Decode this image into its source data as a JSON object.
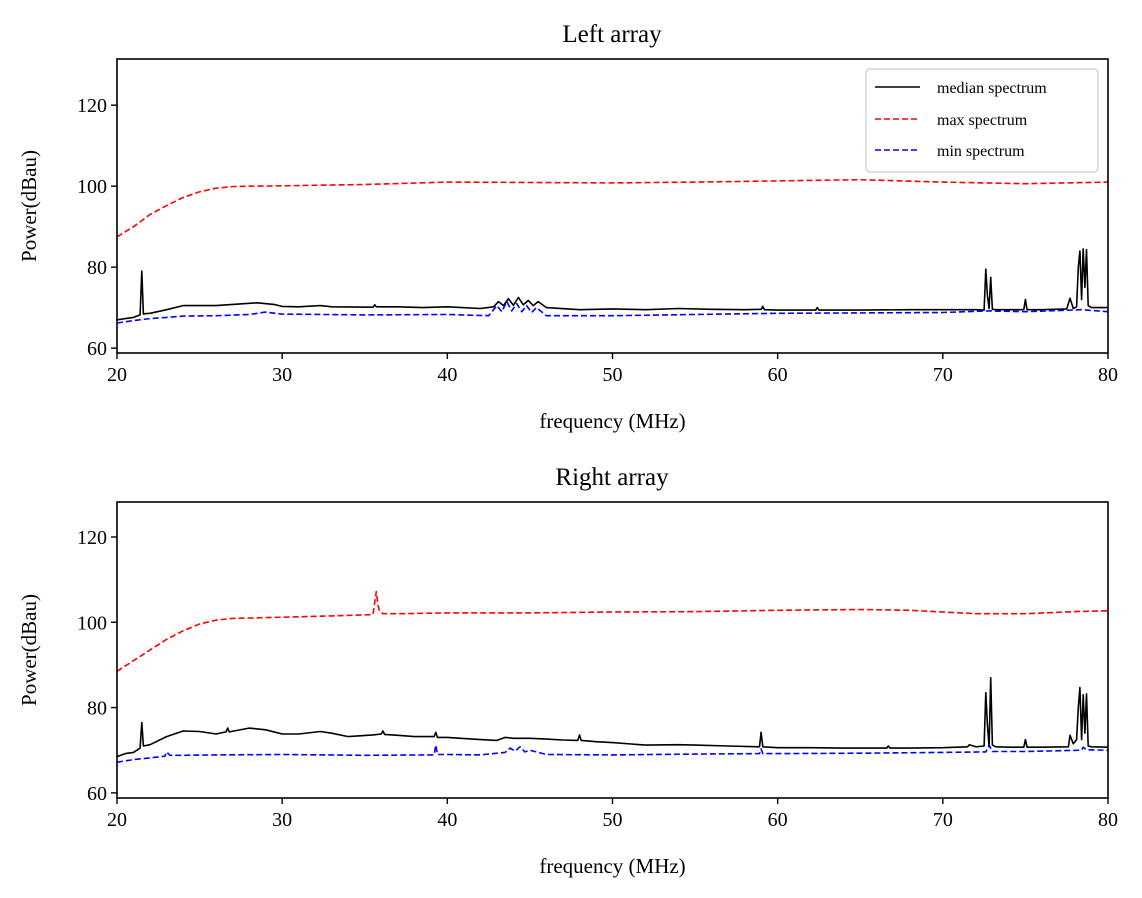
{
  "chart_data": [
    {
      "type": "line",
      "title": "Left array",
      "xlabel": "frequency (MHz)",
      "ylabel": "Power(dBau)",
      "xlim": [
        20,
        80
      ],
      "ylim": [
        58.8,
        131.4
      ],
      "xticks": [
        20,
        30,
        40,
        50,
        60,
        70,
        80
      ],
      "xtick_labels": [
        "20",
        "30",
        "40",
        "50",
        "60",
        "70",
        "80"
      ],
      "yticks": [
        60,
        80,
        100,
        120
      ],
      "ytick_labels": [
        "60",
        "80",
        "100",
        "120"
      ],
      "grid": false,
      "legend": {
        "placement": "top-right",
        "entries": [
          "median spectrum",
          "max spectrum",
          "min spectrum"
        ]
      },
      "series": [
        {
          "name": "median spectrum",
          "color": "#000000",
          "style": "solid",
          "x": [
            20,
            21,
            21.4,
            21.5,
            21.6,
            21.7,
            22,
            23,
            24,
            26,
            27,
            28.5,
            29.5,
            30,
            31,
            32.3,
            33,
            35.5,
            35.6,
            35.7,
            37,
            38.5,
            40,
            42,
            42.8,
            43.1,
            43.4,
            43.7,
            44.0,
            44.3,
            44.6,
            44.9,
            45.2,
            45.5,
            46,
            48,
            50,
            52,
            54,
            56,
            58,
            59,
            59.1,
            59.2,
            60,
            62.3,
            62.4,
            62.5,
            65,
            68,
            70,
            72,
            72.5,
            72.6,
            72.7,
            72.8,
            72.9,
            73.0,
            73.2,
            74,
            74.9,
            75.0,
            75.1,
            76,
            77.5,
            77.7,
            77.9,
            78.1,
            78.2,
            78.3,
            78.4,
            78.5,
            78.6,
            78.7,
            78.8,
            79,
            79.5,
            80
          ],
          "y": [
            67,
            67.6,
            68.2,
            79,
            68.4,
            68.5,
            68.6,
            69.5,
            70.5,
            70.5,
            70.8,
            71.2,
            70.8,
            70.3,
            70.2,
            70.5,
            70.2,
            70.1,
            70.7,
            70.2,
            70.2,
            70,
            70.2,
            69.8,
            70.2,
            71.5,
            70.5,
            72.2,
            70.6,
            72.5,
            70.7,
            71.8,
            70.5,
            71.5,
            70,
            69.5,
            69.7,
            69.5,
            69.8,
            69.6,
            69.5,
            69.6,
            70.3,
            69.5,
            69.4,
            69.4,
            70,
            69.4,
            69.4,
            69.5,
            69.5,
            69.5,
            69.4,
            79.5,
            73,
            69.8,
            77.5,
            69.6,
            69.5,
            69.5,
            69.5,
            72,
            69.5,
            69.5,
            69.7,
            72.3,
            69.8,
            70.2,
            80,
            84,
            72,
            84.5,
            75,
            84.3,
            70.5,
            70,
            70,
            70
          ]
        },
        {
          "name": "max spectrum",
          "color": "#ff0000",
          "style": "dashed",
          "x": [
            20,
            21,
            22,
            23,
            24,
            25,
            26,
            27,
            28,
            30,
            35,
            40,
            45,
            50,
            55,
            60,
            65,
            70,
            75,
            80
          ],
          "y": [
            87.5,
            90,
            93,
            95.2,
            97.2,
            98.6,
            99.5,
            99.9,
            100,
            100.1,
            100.4,
            101,
            100.9,
            100.8,
            101,
            101.3,
            101.6,
            101,
            100.6,
            101
          ]
        },
        {
          "name": "min spectrum",
          "color": "#0000ff",
          "style": "dashed",
          "x": [
            20,
            21,
            22,
            23,
            24,
            26,
            28,
            29,
            30,
            35,
            40,
            42.5,
            43.0,
            43.3,
            43.6,
            43.9,
            44.2,
            44.5,
            44.8,
            45.1,
            45.4,
            46,
            50,
            55,
            60,
            65,
            70,
            72.8,
            75,
            78.4,
            80
          ],
          "y": [
            66.2,
            66.8,
            67.3,
            67.6,
            67.9,
            68,
            68.3,
            68.9,
            68.4,
            68.2,
            68.3,
            68,
            70.5,
            69,
            71.5,
            69.2,
            71,
            69,
            70.5,
            68.8,
            70,
            68,
            68,
            68.3,
            68.6,
            68.7,
            68.8,
            69.2,
            69,
            69.5,
            69
          ]
        }
      ]
    },
    {
      "type": "line",
      "title": "Right array",
      "xlabel": "frequency (MHz)",
      "ylabel": "Power(dBau)",
      "xlim": [
        20,
        80
      ],
      "ylim": [
        58.8,
        128.2
      ],
      "xticks": [
        20,
        30,
        40,
        50,
        60,
        70,
        80
      ],
      "xtick_labels": [
        "20",
        "30",
        "40",
        "50",
        "60",
        "70",
        "80"
      ],
      "yticks": [
        60,
        80,
        100,
        120
      ],
      "ytick_labels": [
        "60",
        "80",
        "100",
        "120"
      ],
      "grid": false,
      "series": [
        {
          "name": "median spectrum",
          "color": "#000000",
          "style": "solid",
          "x": [
            20,
            20.5,
            21,
            21.4,
            21.5,
            21.6,
            22,
            23,
            24,
            25,
            26,
            26.6,
            26.7,
            26.8,
            28,
            29,
            30,
            31,
            32.3,
            33,
            34,
            35.5,
            36,
            36.1,
            36.2,
            37,
            38,
            39.2,
            39.3,
            39.4,
            40,
            42,
            43,
            43.5,
            44,
            45,
            46,
            47,
            47.9,
            48.0,
            48.1,
            49,
            50,
            52,
            54,
            55,
            57,
            58.9,
            59.0,
            59.1,
            60,
            62,
            64,
            66.6,
            66.7,
            66.8,
            68,
            70,
            71.5,
            71.6,
            72,
            72.5,
            72.6,
            72.7,
            72.8,
            72.9,
            73.0,
            73.2,
            74,
            74.9,
            75.0,
            75.1,
            76,
            77.6,
            77.7,
            77.9,
            78.1,
            78.2,
            78.3,
            78.4,
            78.5,
            78.6,
            78.7,
            78.8,
            79,
            80
          ],
          "y": [
            68.5,
            69.2,
            69.5,
            70.5,
            76.5,
            71,
            71.3,
            73.2,
            74.5,
            74.4,
            73.8,
            74.3,
            75.2,
            74.3,
            75.2,
            74.8,
            73.8,
            73.8,
            74.4,
            74,
            73.2,
            73.6,
            73.8,
            74.5,
            73.7,
            73.5,
            73.2,
            73.2,
            74.2,
            73,
            73,
            72.5,
            72.3,
            73,
            72.8,
            72.8,
            72.6,
            72.4,
            72.3,
            73.6,
            72.3,
            72,
            71.8,
            71.2,
            71.3,
            71.2,
            71,
            70.8,
            74.2,
            70.8,
            70.6,
            70.6,
            70.5,
            70.5,
            71,
            70.5,
            70.5,
            70.6,
            70.8,
            71.3,
            70.8,
            71,
            83.5,
            76,
            70.8,
            87,
            71.2,
            70.8,
            70.7,
            70.7,
            72.5,
            70.7,
            70.7,
            70.8,
            73.5,
            71.5,
            72.5,
            80,
            84.7,
            72.5,
            83,
            74,
            83.2,
            71,
            70.8,
            70.7
          ]
        },
        {
          "name": "max spectrum",
          "color": "#ff0000",
          "style": "dashed",
          "x": [
            20,
            21,
            22,
            23,
            24,
            25,
            26,
            27,
            28,
            30,
            33,
            35.5,
            35.7,
            35.8,
            35.9,
            36.1,
            37,
            40,
            45,
            50,
            55,
            60,
            65,
            68,
            72,
            75,
            78,
            80
          ],
          "y": [
            88.5,
            91,
            93.5,
            96,
            98,
            99.6,
            100.5,
            100.9,
            101,
            101.2,
            101.5,
            101.8,
            107.2,
            104,
            102.6,
            102,
            102,
            102.2,
            102.2,
            102.4,
            102.5,
            102.8,
            103,
            102.8,
            102,
            102,
            102.5,
            102.7
          ]
        },
        {
          "name": "min spectrum",
          "color": "#0000ff",
          "style": "dashed",
          "x": [
            20,
            21,
            22,
            22.9,
            23.0,
            23.2,
            24,
            26,
            30,
            35,
            39.2,
            39.3,
            39.4,
            40,
            42,
            43.5,
            43.8,
            44.1,
            44.4,
            44.7,
            45,
            46,
            50,
            55,
            58.9,
            59.0,
            59.1,
            60,
            65,
            70,
            72.6,
            72.8,
            73.0,
            75,
            78.4,
            78.5,
            78.7,
            80
          ],
          "y": [
            67.2,
            67.8,
            68.2,
            68.6,
            69.6,
            68.8,
            68.8,
            68.9,
            69,
            68.8,
            68.9,
            71.2,
            69,
            69,
            68.9,
            69.5,
            70.5,
            69.8,
            70.8,
            69.6,
            70,
            69,
            68.9,
            69.1,
            69.2,
            70.3,
            69.2,
            69.2,
            69.3,
            69.5,
            69.6,
            71.2,
            69.7,
            69.7,
            70,
            70.7,
            70.1,
            70
          ]
        }
      ]
    }
  ]
}
